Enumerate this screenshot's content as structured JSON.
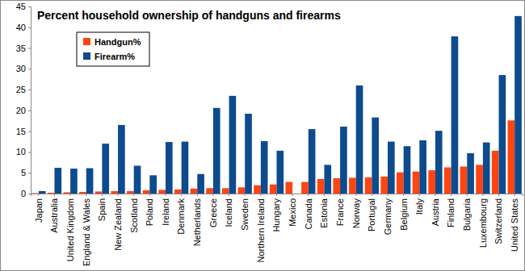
{
  "chart_data": {
    "type": "bar",
    "title": "Percent household ownership of handguns and firearms",
    "categories": [
      "Japan",
      "Australia",
      "United Kingdom",
      "England & Wales",
      "Spain",
      "New Zealand",
      "Scotland",
      "Poland",
      "Ireland",
      "Denmark",
      "Netherlands",
      "Greece",
      "Iceland",
      "Sweden",
      "Northern Ireland",
      "Hungary",
      "Mexico",
      "Canada",
      "Estonia",
      "France",
      "Norway",
      "Portugal",
      "Germany",
      "Belgium",
      "Italy",
      "Austria",
      "Finland",
      "Bulgaria",
      "Luxembourg",
      "Switzerland",
      "United States"
    ],
    "series": [
      {
        "name": "Handgun%",
        "color": "#ff4411",
        "values": [
          0.1,
          0.2,
          0.3,
          0.4,
          0.5,
          0.6,
          0.6,
          0.8,
          0.9,
          1.0,
          1.2,
          1.3,
          1.3,
          1.5,
          2.0,
          2.2,
          2.8,
          2.8,
          3.5,
          3.7,
          3.8,
          3.9,
          4.1,
          5.1,
          5.3,
          5.6,
          6.3,
          6.5,
          6.9,
          10.3,
          17.6
        ]
      },
      {
        "name": "Firearm%",
        "color": "#0d4b8e",
        "values": [
          0.6,
          6.2,
          6.0,
          6.1,
          12.0,
          16.5,
          6.7,
          4.4,
          12.4,
          12.5,
          4.7,
          20.6,
          23.5,
          19.2,
          12.6,
          10.3,
          null,
          15.5,
          6.9,
          16.1,
          26.0,
          18.3,
          12.5,
          11.4,
          12.8,
          15.1,
          37.8,
          9.7,
          12.3,
          28.5,
          42.7
        ]
      }
    ],
    "ylim": [
      0,
      45
    ],
    "yticks": [
      0,
      5,
      10,
      15,
      20,
      25,
      30,
      35,
      40,
      45
    ],
    "grid": false,
    "legend": "top-left"
  }
}
